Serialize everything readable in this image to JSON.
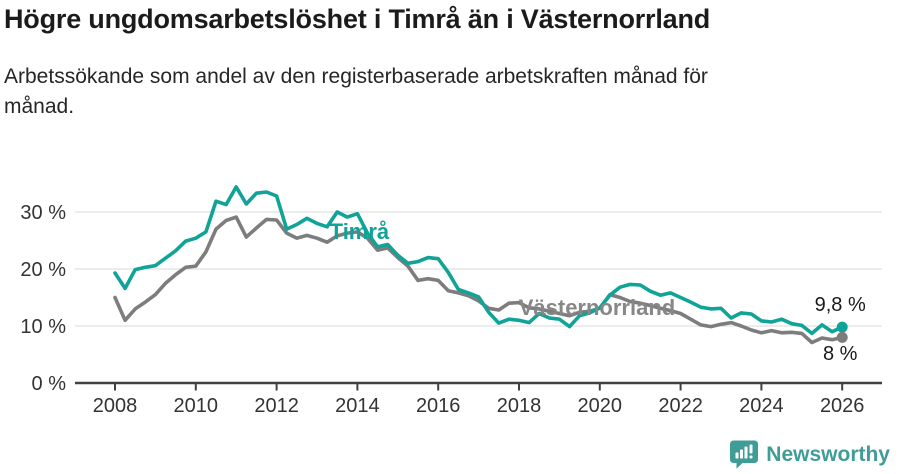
{
  "header": {
    "title": "Högre ungdomsarbetslöshet i Timrå än i Västernorrland",
    "subtitle": "Arbetssökande som andel av den registerbaserade arbetskraften månad för månad."
  },
  "footer": {
    "brand": "Newsworthy",
    "logo_icon": "speech-bubble-bar-chart",
    "logo_color": "#3f9c96"
  },
  "chart_data": {
    "type": "line",
    "x_unit": "year (monthly data, shown 2008–2026)",
    "y_unit": "%",
    "ylim": [
      0,
      36
    ],
    "grid": true,
    "legend_position": "inline-labels",
    "x": [
      2008.0,
      2008.25,
      2008.5,
      2008.75,
      2009.0,
      2009.25,
      2009.5,
      2009.75,
      2010.0,
      2010.25,
      2010.5,
      2010.75,
      2011.0,
      2011.25,
      2011.5,
      2011.75,
      2012.0,
      2012.25,
      2012.5,
      2012.75,
      2013.0,
      2013.25,
      2013.5,
      2013.75,
      2014.0,
      2014.25,
      2014.5,
      2014.75,
      2015.0,
      2015.25,
      2015.5,
      2015.75,
      2016.0,
      2016.25,
      2016.5,
      2016.75,
      2017.0,
      2017.25,
      2017.5,
      2017.75,
      2018.0,
      2018.25,
      2018.5,
      2018.75,
      2019.0,
      2019.25,
      2019.5,
      2019.75,
      2020.0,
      2020.25,
      2020.5,
      2020.75,
      2021.0,
      2021.25,
      2021.5,
      2021.75,
      2022.0,
      2022.25,
      2022.5,
      2022.75,
      2023.0,
      2023.25,
      2023.5,
      2023.75,
      2024.0,
      2024.25,
      2024.5,
      2024.75,
      2025.0,
      2025.25,
      2025.5,
      2025.75,
      2026.0
    ],
    "series": [
      {
        "key": "timra",
        "name": "Timrå",
        "color": "#10a397",
        "label_color": "#10a397",
        "end_value_label": "9,8 %",
        "label_pos": {
          "x": 2014.05,
          "y": 26.7
        },
        "end_label_pos": {
          "x": 2025.95,
          "y": 12.6
        },
        "values": [
          19.3,
          16.6,
          19.9,
          20.3,
          20.6,
          21.9,
          23.2,
          24.9,
          25.4,
          26.5,
          31.9,
          31.3,
          34.4,
          31.4,
          33.3,
          33.5,
          32.8,
          27.0,
          27.8,
          28.9,
          28.0,
          27.4,
          30.0,
          29.1,
          29.7,
          26.3,
          23.9,
          24.3,
          22.4,
          21.0,
          21.3,
          22.0,
          21.8,
          19.4,
          16.4,
          15.8,
          15.1,
          12.4,
          10.5,
          11.2,
          11.0,
          10.6,
          12.2,
          11.4,
          11.2,
          9.9,
          11.8,
          12.3,
          13.2,
          15.4,
          16.8,
          17.3,
          17.2,
          16.1,
          15.4,
          15.8,
          15.0,
          14.2,
          13.3,
          13.0,
          13.1,
          11.4,
          12.3,
          12.1,
          10.9,
          10.7,
          11.2,
          10.4,
          10.1,
          8.7,
          10.2,
          9.0,
          9.8
        ]
      },
      {
        "key": "vasternorrland",
        "name": "Västernorrland",
        "color": "#7d7d7d",
        "label_color": "#878787",
        "end_value_label": "8 %",
        "label_pos": {
          "x": 2019.93,
          "y": 13.3
        },
        "end_label_pos": {
          "x": 2025.95,
          "y": 4.0
        },
        "values": [
          15.0,
          11.0,
          13.0,
          14.2,
          15.5,
          17.5,
          19.0,
          20.3,
          20.5,
          23.0,
          27.0,
          28.5,
          29.1,
          25.6,
          27.2,
          28.7,
          28.6,
          26.3,
          25.4,
          25.9,
          25.4,
          24.7,
          25.8,
          26.3,
          26.5,
          25.4,
          23.3,
          23.7,
          22.0,
          20.5,
          18.0,
          18.3,
          18.0,
          16.2,
          15.8,
          15.3,
          14.4,
          13.1,
          12.8,
          14.0,
          14.1,
          13.2,
          13.0,
          12.6,
          12.2,
          11.8,
          12.4,
          12.6,
          13.1,
          15.5,
          15.0,
          14.3,
          14.0,
          13.6,
          13.1,
          12.7,
          12.2,
          11.2,
          10.2,
          9.9,
          10.3,
          10.6,
          10.0,
          9.3,
          8.8,
          9.2,
          8.8,
          8.9,
          8.7,
          7.1,
          7.9,
          7.6,
          8.0
        ]
      }
    ],
    "yticks": [
      {
        "value": 0,
        "label": "0 %"
      },
      {
        "value": 10,
        "label": "10 %"
      },
      {
        "value": 20,
        "label": "20 %"
      },
      {
        "value": 30,
        "label": "30 %"
      }
    ],
    "xticks": [
      {
        "value": 2008,
        "label": "2008"
      },
      {
        "value": 2010,
        "label": "2010"
      },
      {
        "value": 2012,
        "label": "2012"
      },
      {
        "value": 2014,
        "label": "2014"
      },
      {
        "value": 2016,
        "label": "2016"
      },
      {
        "value": 2018,
        "label": "2018"
      },
      {
        "value": 2020,
        "label": "2020"
      },
      {
        "value": 2022,
        "label": "2022"
      },
      {
        "value": 2024,
        "label": "2024"
      },
      {
        "value": 2026,
        "label": "2026"
      }
    ]
  }
}
